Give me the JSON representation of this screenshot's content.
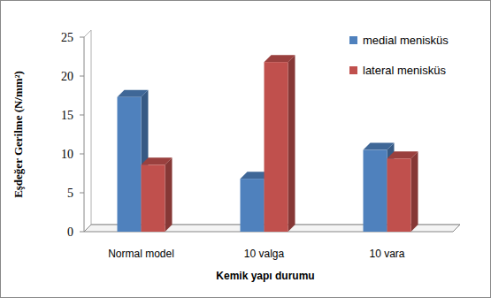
{
  "chart_data": {
    "type": "bar",
    "x_label": "Kemik yapı durumu",
    "y_label": "Eşdeğer Gerilme (N/mm²)",
    "categories": [
      "Normal model",
      "10 valga",
      "10 vara"
    ],
    "series": [
      {
        "name": "medial menisküs",
        "color": "#4f81bd",
        "values": [
          17.3,
          6.8,
          10.5
        ]
      },
      {
        "name": "lateral menisküs",
        "color": "#c0504d",
        "values": [
          8.6,
          21.8,
          9.4
        ]
      }
    ],
    "ylim": [
      0,
      25
    ],
    "yticks": [
      0,
      5,
      10,
      15,
      20,
      25
    ],
    "grid": false,
    "legend": "upper right"
  }
}
